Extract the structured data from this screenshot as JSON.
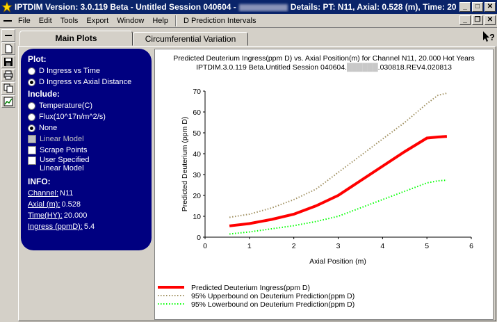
{
  "titlebar": {
    "app_title": "IPTDIM Version: 3.0.119 Beta - Untitled Session 040604 -",
    "details": "Details: PT: N11, Axial: 0.528 (m), Time: 20"
  },
  "menubar": {
    "items": [
      "File",
      "Edit",
      "Tools",
      "Export",
      "Window",
      "Help",
      "D Prediction Intervals"
    ]
  },
  "tabs": [
    {
      "label": "Main Plots",
      "active": true
    },
    {
      "label": "Circumferential Variation",
      "active": false
    }
  ],
  "panel": {
    "plot_header": "Plot:",
    "plot_options": [
      "D Ingress vs Time",
      "D Ingress vs Axial Distance"
    ],
    "plot_selected": 1,
    "include_header": "Include:",
    "include_options": [
      "Temperature(C)",
      "Flux(10^17n/m^2/s)",
      "None"
    ],
    "include_selected": 2,
    "checkboxes": [
      "Linear Model",
      "Scrape Points"
    ],
    "user_specified": [
      "User Specified",
      "Linear Model"
    ],
    "info_header": "INFO:",
    "info": [
      {
        "label": "Channel:",
        "value": "N11"
      },
      {
        "label": "Axial (m):",
        "value": "0.528"
      },
      {
        "label": "Time(HY):",
        "value": "20.000"
      },
      {
        "label": "Ingress (ppmD):",
        "value": "5.4"
      }
    ]
  },
  "chart_data": {
    "type": "line",
    "title": "Predicted Deuterium Ingress(ppm D) vs. Axial Position(m) for Channel N11, 20.000 Hot Years",
    "subtitle_start": "IPTDIM.3.0.119 Beta.Untitled Session 040604.",
    "subtitle_end": ".030818.REV4.020813",
    "xlabel": "Axial Position (m)",
    "ylabel": "Predicted Deuterium (ppm D)",
    "xlim": [
      0,
      6
    ],
    "ylim": [
      0,
      70
    ],
    "xticks": [
      "0",
      "1",
      "2",
      "3",
      "4",
      "5",
      "6"
    ],
    "yticks": [
      "0",
      "10",
      "20",
      "30",
      "40",
      "50",
      "60",
      "70"
    ],
    "series": [
      {
        "name": "Predicted Deuterium Ingress(ppm D)",
        "color": "#ff0000",
        "style": "solid",
        "x": [
          0.55,
          1.0,
          1.5,
          2.0,
          2.5,
          3.0,
          3.5,
          4.0,
          4.5,
          5.0,
          5.25,
          5.45
        ],
        "y": [
          5.4,
          6.5,
          8.5,
          11,
          15,
          20,
          27,
          34,
          41,
          47.5,
          48,
          48.3
        ]
      },
      {
        "name": "95% Upperbound on Deuterium Prediction(ppm D)",
        "color": "#a09060",
        "style": "dotted",
        "x": [
          0.55,
          1.0,
          1.5,
          2.0,
          2.5,
          3.0,
          3.5,
          4.0,
          4.5,
          5.0,
          5.25,
          5.45
        ],
        "y": [
          9.5,
          11,
          14,
          18,
          23,
          31,
          39,
          47,
          55,
          64,
          68,
          69
        ]
      },
      {
        "name": "95% Lowerbound on Deuterium Prediction(ppm D)",
        "color": "#00ff00",
        "style": "dotted",
        "x": [
          0.55,
          1.0,
          1.5,
          2.0,
          2.5,
          3.0,
          3.5,
          4.0,
          4.5,
          5.0,
          5.25,
          5.45
        ],
        "y": [
          1.5,
          2.5,
          4,
          5.5,
          7.5,
          10,
          14,
          18,
          22,
          26,
          27,
          27.3
        ]
      }
    ]
  }
}
